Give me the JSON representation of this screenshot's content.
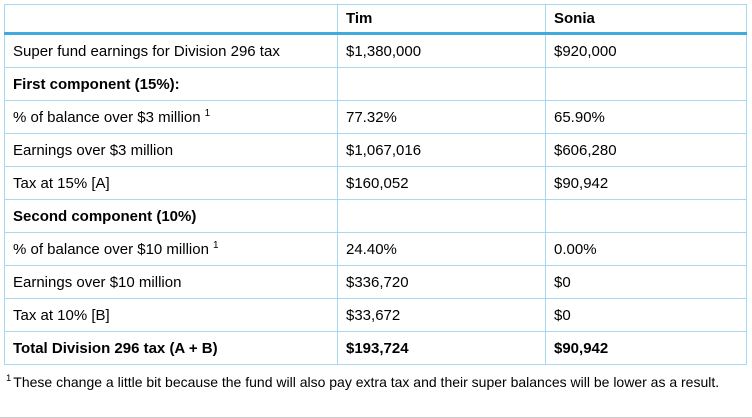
{
  "colors": {
    "grid_border": "#a9d7f0",
    "header_rule": "#41a9dc",
    "text": "#000000"
  },
  "table": {
    "columns": [
      "",
      "Tim",
      "Sonia"
    ],
    "rows": [
      {
        "label": "Super fund earnings for Division 296 tax",
        "tim": "$1,380,000",
        "sonia": "$920,000"
      },
      {
        "label": "First component (15%):",
        "tim": "",
        "sonia": ""
      },
      {
        "label": "% of balance over $3 million",
        "sup": "1",
        "tim": "77.32%",
        "sonia": "65.90%"
      },
      {
        "label": "Earnings over $3 million",
        "tim": "$1,067,016",
        "sonia": "$606,280"
      },
      {
        "label": "Tax at 15% [A]",
        "tim": "$160,052",
        "sonia": "$90,942"
      },
      {
        "label": "Second component (10%)",
        "tim": "",
        "sonia": ""
      },
      {
        "label": "% of balance over $10 million",
        "sup": "1",
        "tim": "24.40%",
        "sonia": "0.00%"
      },
      {
        "label": "Earnings over $10 million",
        "tim": "$336,720",
        "sonia": "$0"
      },
      {
        "label": "Tax at 10% [B]",
        "tim": "$33,672",
        "sonia": "$0"
      },
      {
        "label": "Total Division 296 tax (A + B)",
        "tim": "$193,724",
        "sonia": "$90,942"
      }
    ]
  },
  "footnote": {
    "sup": "1",
    "text": "These change a little bit because the fund will also pay extra tax and their super balances will be lower as a result."
  }
}
